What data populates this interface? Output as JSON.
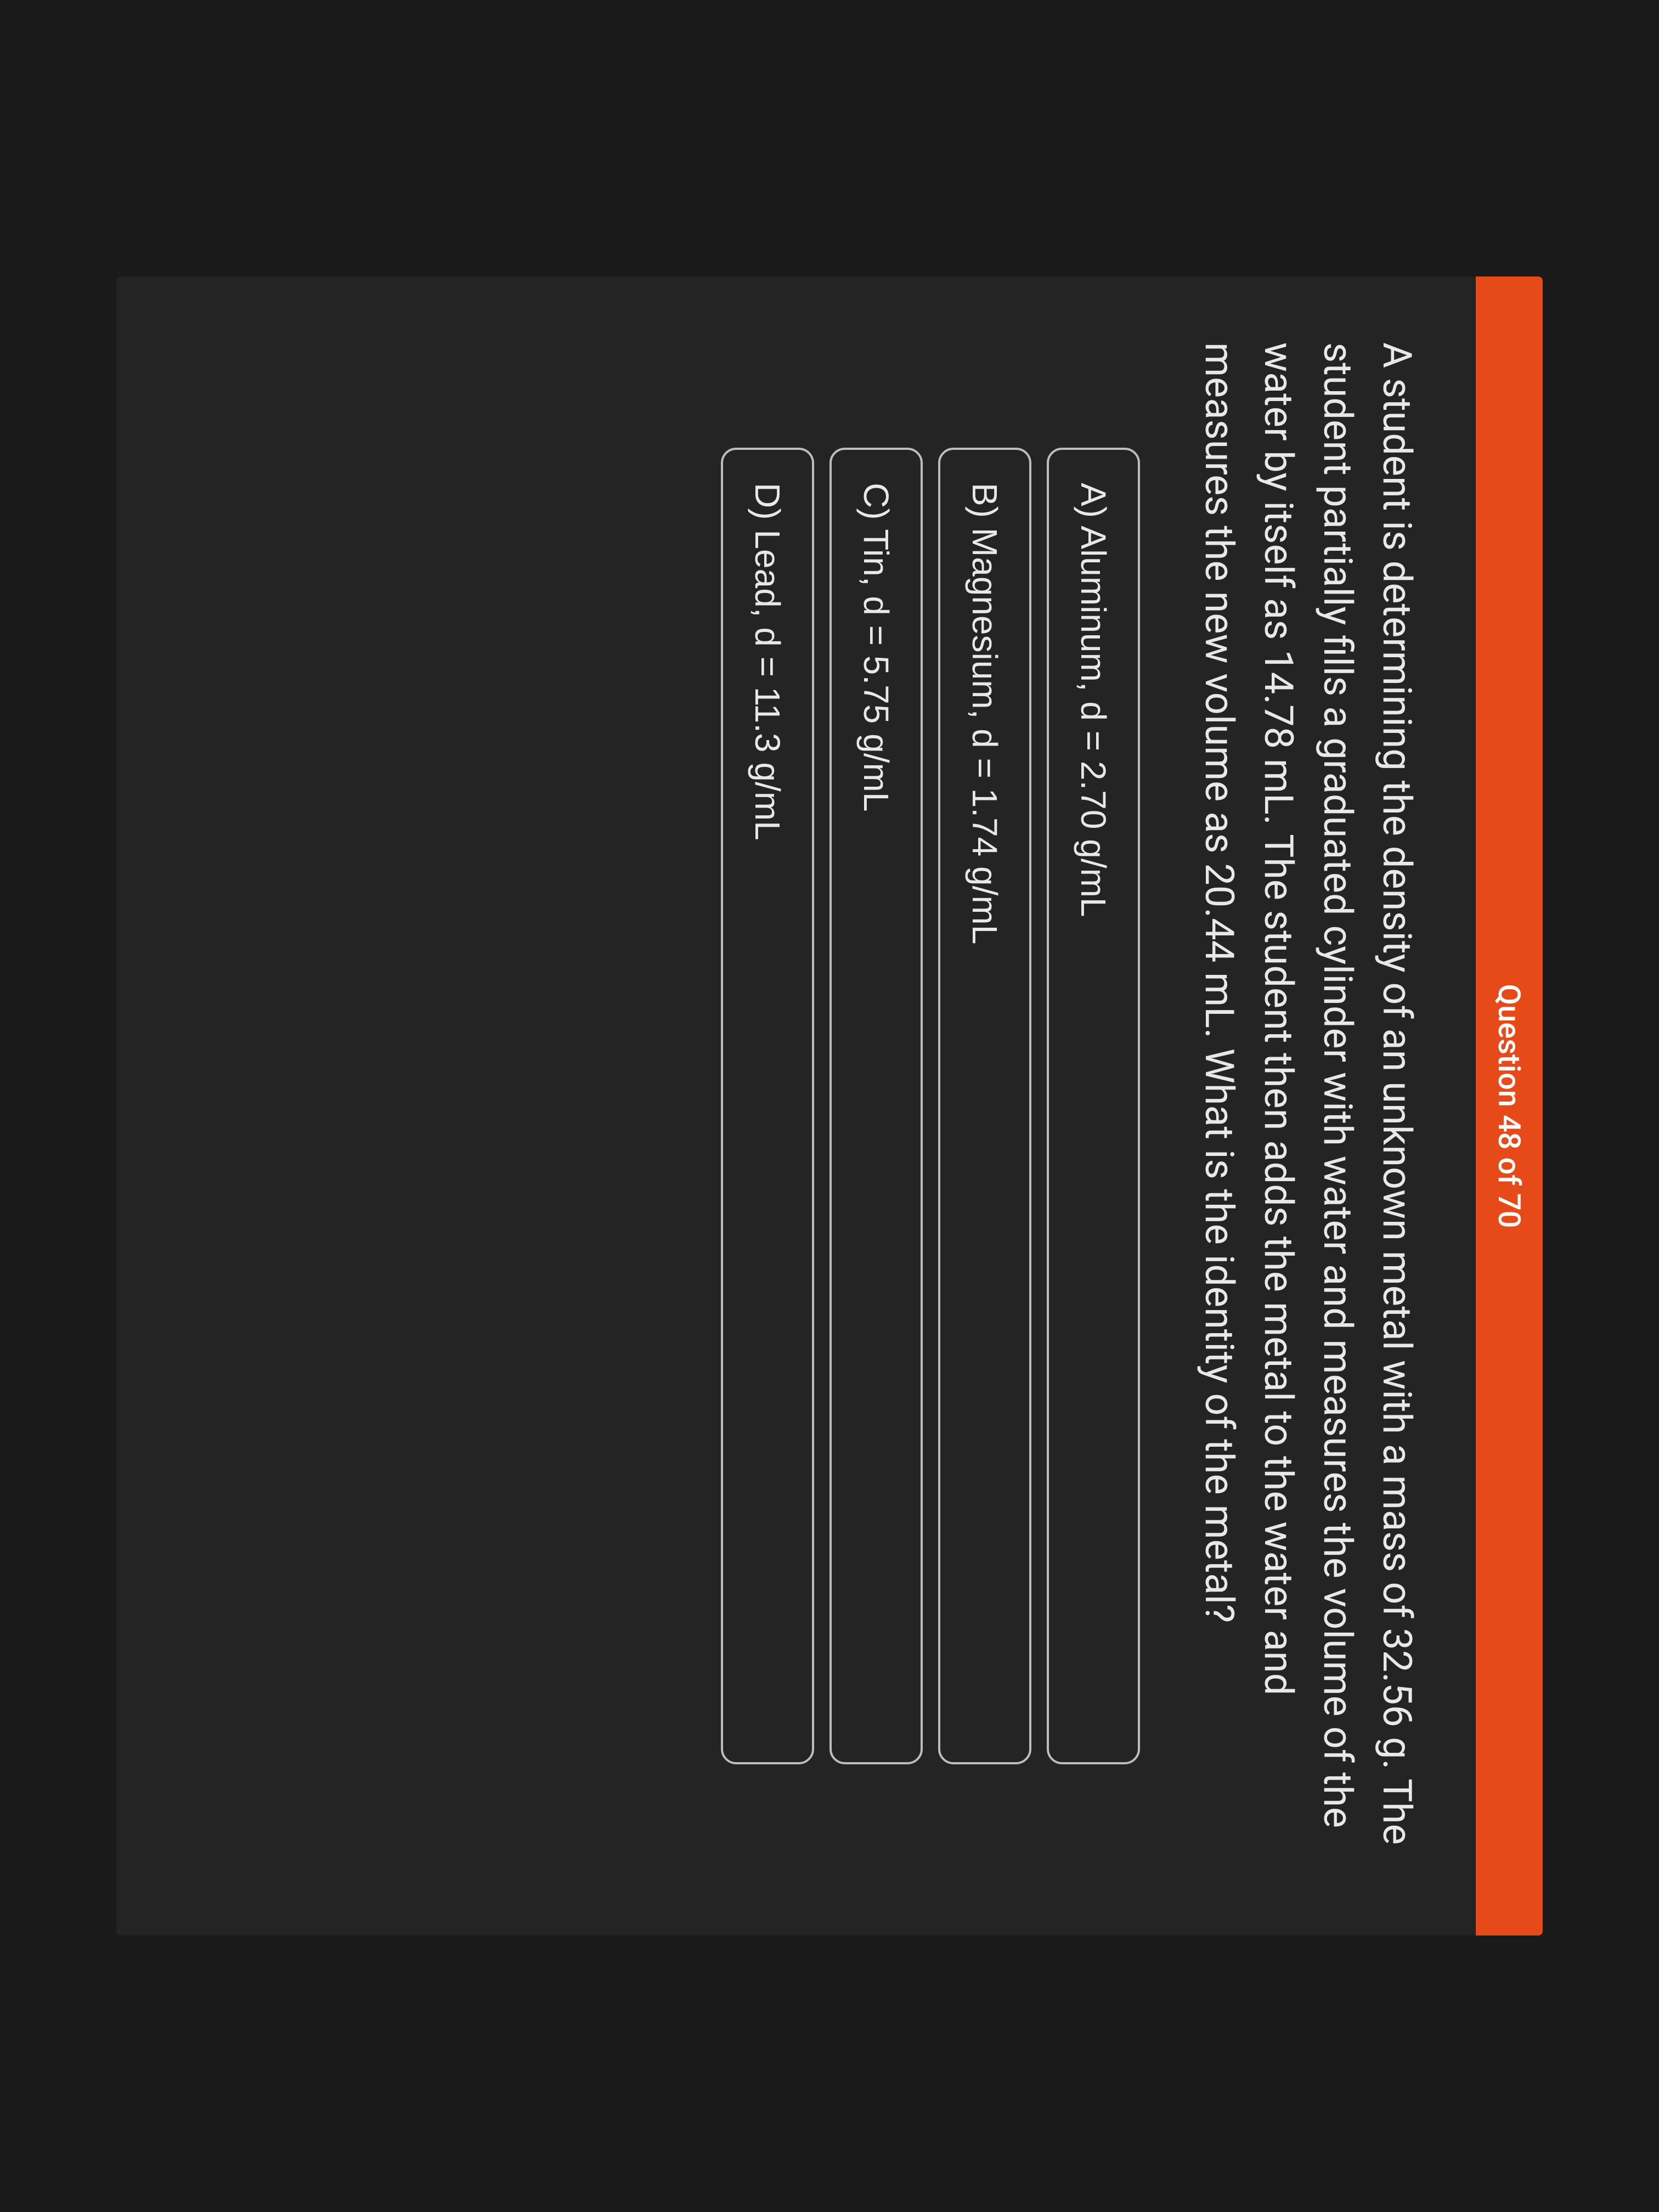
{
  "header": {
    "progress_label": "Question 48 of 70"
  },
  "question": {
    "prompt": "A student is determining the density of an unknown metal with a mass of 32.56 g. The student partially fills a graduated cylinder with water and measures the volume of the water by itself as 14.78 mL. The student then adds the metal to the water and measures the new volume as 20.44 mL. What is the identity of the metal?"
  },
  "options": [
    {
      "label": "A) Aluminum, d = 2.70 g/mL"
    },
    {
      "label": "B) Magnesium, d = 1.74 g/mL"
    },
    {
      "label": "C) Tin, d = 5.75 g/mL"
    },
    {
      "label": "D) Lead, d = 11.3 g/mL"
    }
  ],
  "colors": {
    "header_bg": "#e64a19",
    "header_text": "#ffffff",
    "page_bg": "#242424",
    "text": "#e8e8e8",
    "option_border": "#bdbdbd"
  }
}
